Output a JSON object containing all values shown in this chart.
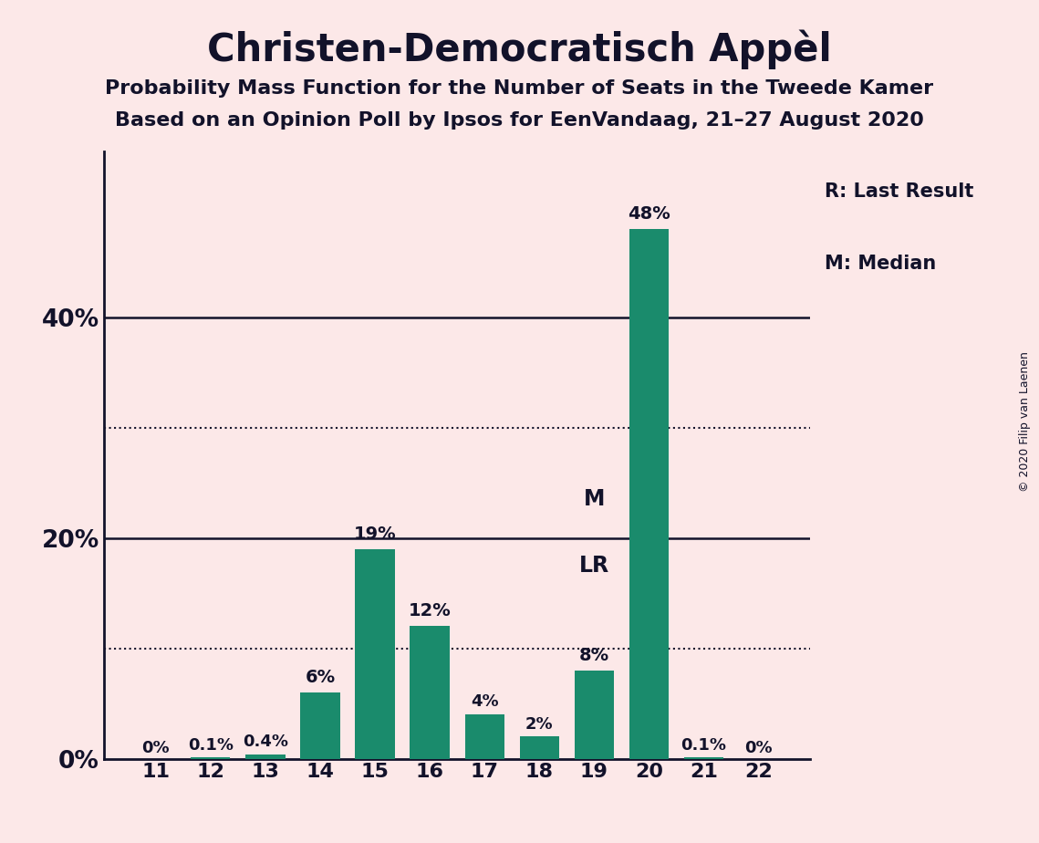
{
  "title": "Christen-Democratisch Appèl",
  "subtitle1": "Probability Mass Function for the Number of Seats in the Tweede Kamer",
  "subtitle2": "Based on an Opinion Poll by Ipsos for EenVandaag, 21–27 August 2020",
  "copyright": "© 2020 Filip van Laenen",
  "seats": [
    11,
    12,
    13,
    14,
    15,
    16,
    17,
    18,
    19,
    20,
    21,
    22
  ],
  "values": [
    0.0,
    0.1,
    0.4,
    6.0,
    19.0,
    12.0,
    4.0,
    2.0,
    8.0,
    48.0,
    0.1,
    0.0
  ],
  "labels": [
    "0%",
    "0.1%",
    "0.4%",
    "6%",
    "19%",
    "12%",
    "4%",
    "2%",
    "8%",
    "48%",
    "0.1%",
    "0%"
  ],
  "bar_color": "#1a8b6c",
  "background_color": "#fce8e8",
  "text_color": "#12122a",
  "dotted_line_1": 10.0,
  "dotted_line_2": 30.0,
  "solid_line_1": 20.0,
  "solid_line_2": 40.0,
  "ylim_max": 55,
  "last_result_seat": 19,
  "median_seat": 19,
  "legend_r": "R: Last Result",
  "legend_m": "M: Median"
}
